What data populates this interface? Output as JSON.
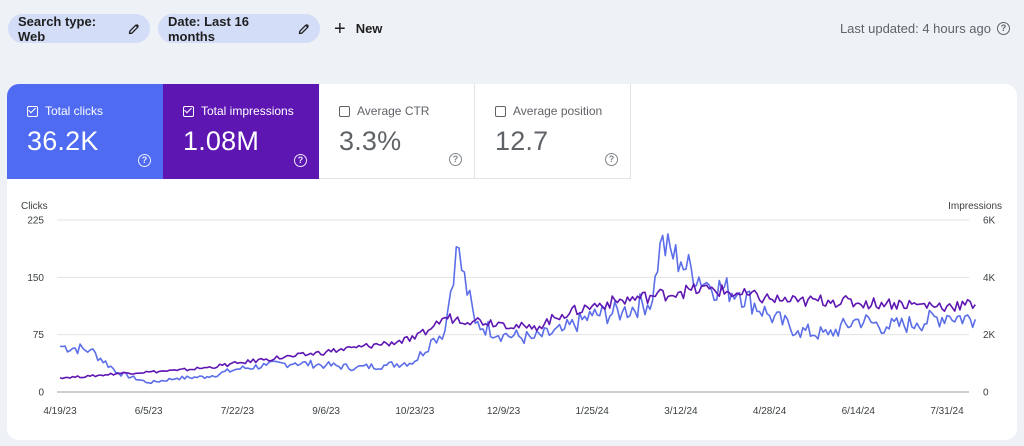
{
  "toolbar": {
    "search_type_label": "Search type: Web",
    "date_label": "Date: Last 16 months",
    "new_label": "New",
    "last_updated": "Last updated: 4 hours ago",
    "icons": {
      "edit": "pencil-icon",
      "add": "plus-icon",
      "help": "help-icon"
    }
  },
  "metrics": [
    {
      "label": "Total clicks",
      "value": "36.2K",
      "checked": true,
      "color": "#4e6bf2"
    },
    {
      "label": "Total impressions",
      "value": "1.08M",
      "checked": true,
      "color": "#5e16b2"
    },
    {
      "label": "Average CTR",
      "value": "3.3%",
      "checked": false
    },
    {
      "label": "Average position",
      "value": "12.7",
      "checked": false
    }
  ],
  "chart_data": {
    "type": "line",
    "left_axis_label": "Clicks",
    "right_axis_label": "Impressions",
    "left_ticks": [
      "225",
      "150",
      "75",
      "0"
    ],
    "right_ticks": [
      "6K",
      "4K",
      "2K",
      "0"
    ],
    "left_ylim": [
      0,
      225
    ],
    "right_ylim": [
      0,
      6000
    ],
    "x_tick_labels": [
      "4/19/23",
      "6/5/23",
      "7/22/23",
      "9/6/23",
      "10/23/23",
      "12/9/23",
      "1/25/24",
      "3/12/24",
      "4/28/24",
      "6/14/24",
      "7/31/24"
    ],
    "grid": true,
    "series": [
      {
        "name": "Clicks",
        "axis": "left",
        "color": "#5b6ee8",
        "x": [
          "4/19/23",
          "5/5/23",
          "5/20/23",
          "6/5/23",
          "6/20/23",
          "7/6/23",
          "7/22/23",
          "8/6/23",
          "8/21/23",
          "9/6/23",
          "9/22/23",
          "10/8/23",
          "10/23/23",
          "11/2/23",
          "11/8/23",
          "11/14/23",
          "11/24/23",
          "12/9/23",
          "12/24/23",
          "1/9/24",
          "1/25/24",
          "2/10/24",
          "2/26/24",
          "3/1/24",
          "3/12/24",
          "3/27/24",
          "4/12/24",
          "4/28/24",
          "5/13/24",
          "5/29/24",
          "6/14/24",
          "6/29/24",
          "7/15/24",
          "7/31/24",
          "8/15/24"
        ],
        "values": [
          60,
          55,
          25,
          12,
          18,
          20,
          30,
          35,
          38,
          35,
          32,
          35,
          40,
          70,
          80,
          190,
          90,
          75,
          70,
          80,
          100,
          105,
          120,
          195,
          170,
          140,
          130,
          100,
          80,
          75,
          95,
          85,
          90,
          100,
          95
        ]
      },
      {
        "name": "Impressions",
        "axis": "right",
        "color": "#5e16b2",
        "x": [
          "4/19/23",
          "5/5/23",
          "5/20/23",
          "6/5/23",
          "6/20/23",
          "7/6/23",
          "7/22/23",
          "8/6/23",
          "8/21/23",
          "9/6/23",
          "9/22/23",
          "10/8/23",
          "10/23/23",
          "11/2/23",
          "11/8/23",
          "11/24/23",
          "12/9/23",
          "12/24/23",
          "1/9/24",
          "1/25/24",
          "2/10/24",
          "2/26/24",
          "3/12/24",
          "3/27/24",
          "4/12/24",
          "4/28/24",
          "5/13/24",
          "5/29/24",
          "6/14/24",
          "6/29/24",
          "7/15/24",
          "7/31/24",
          "8/15/24"
        ],
        "values": [
          500,
          550,
          650,
          700,
          750,
          850,
          1000,
          1150,
          1250,
          1400,
          1550,
          1700,
          1850,
          2300,
          2600,
          2500,
          2400,
          2200,
          2700,
          3000,
          3200,
          3350,
          3500,
          3600,
          3400,
          3250,
          3150,
          3200,
          3100,
          3100,
          3050,
          3000,
          3050
        ]
      }
    ]
  }
}
